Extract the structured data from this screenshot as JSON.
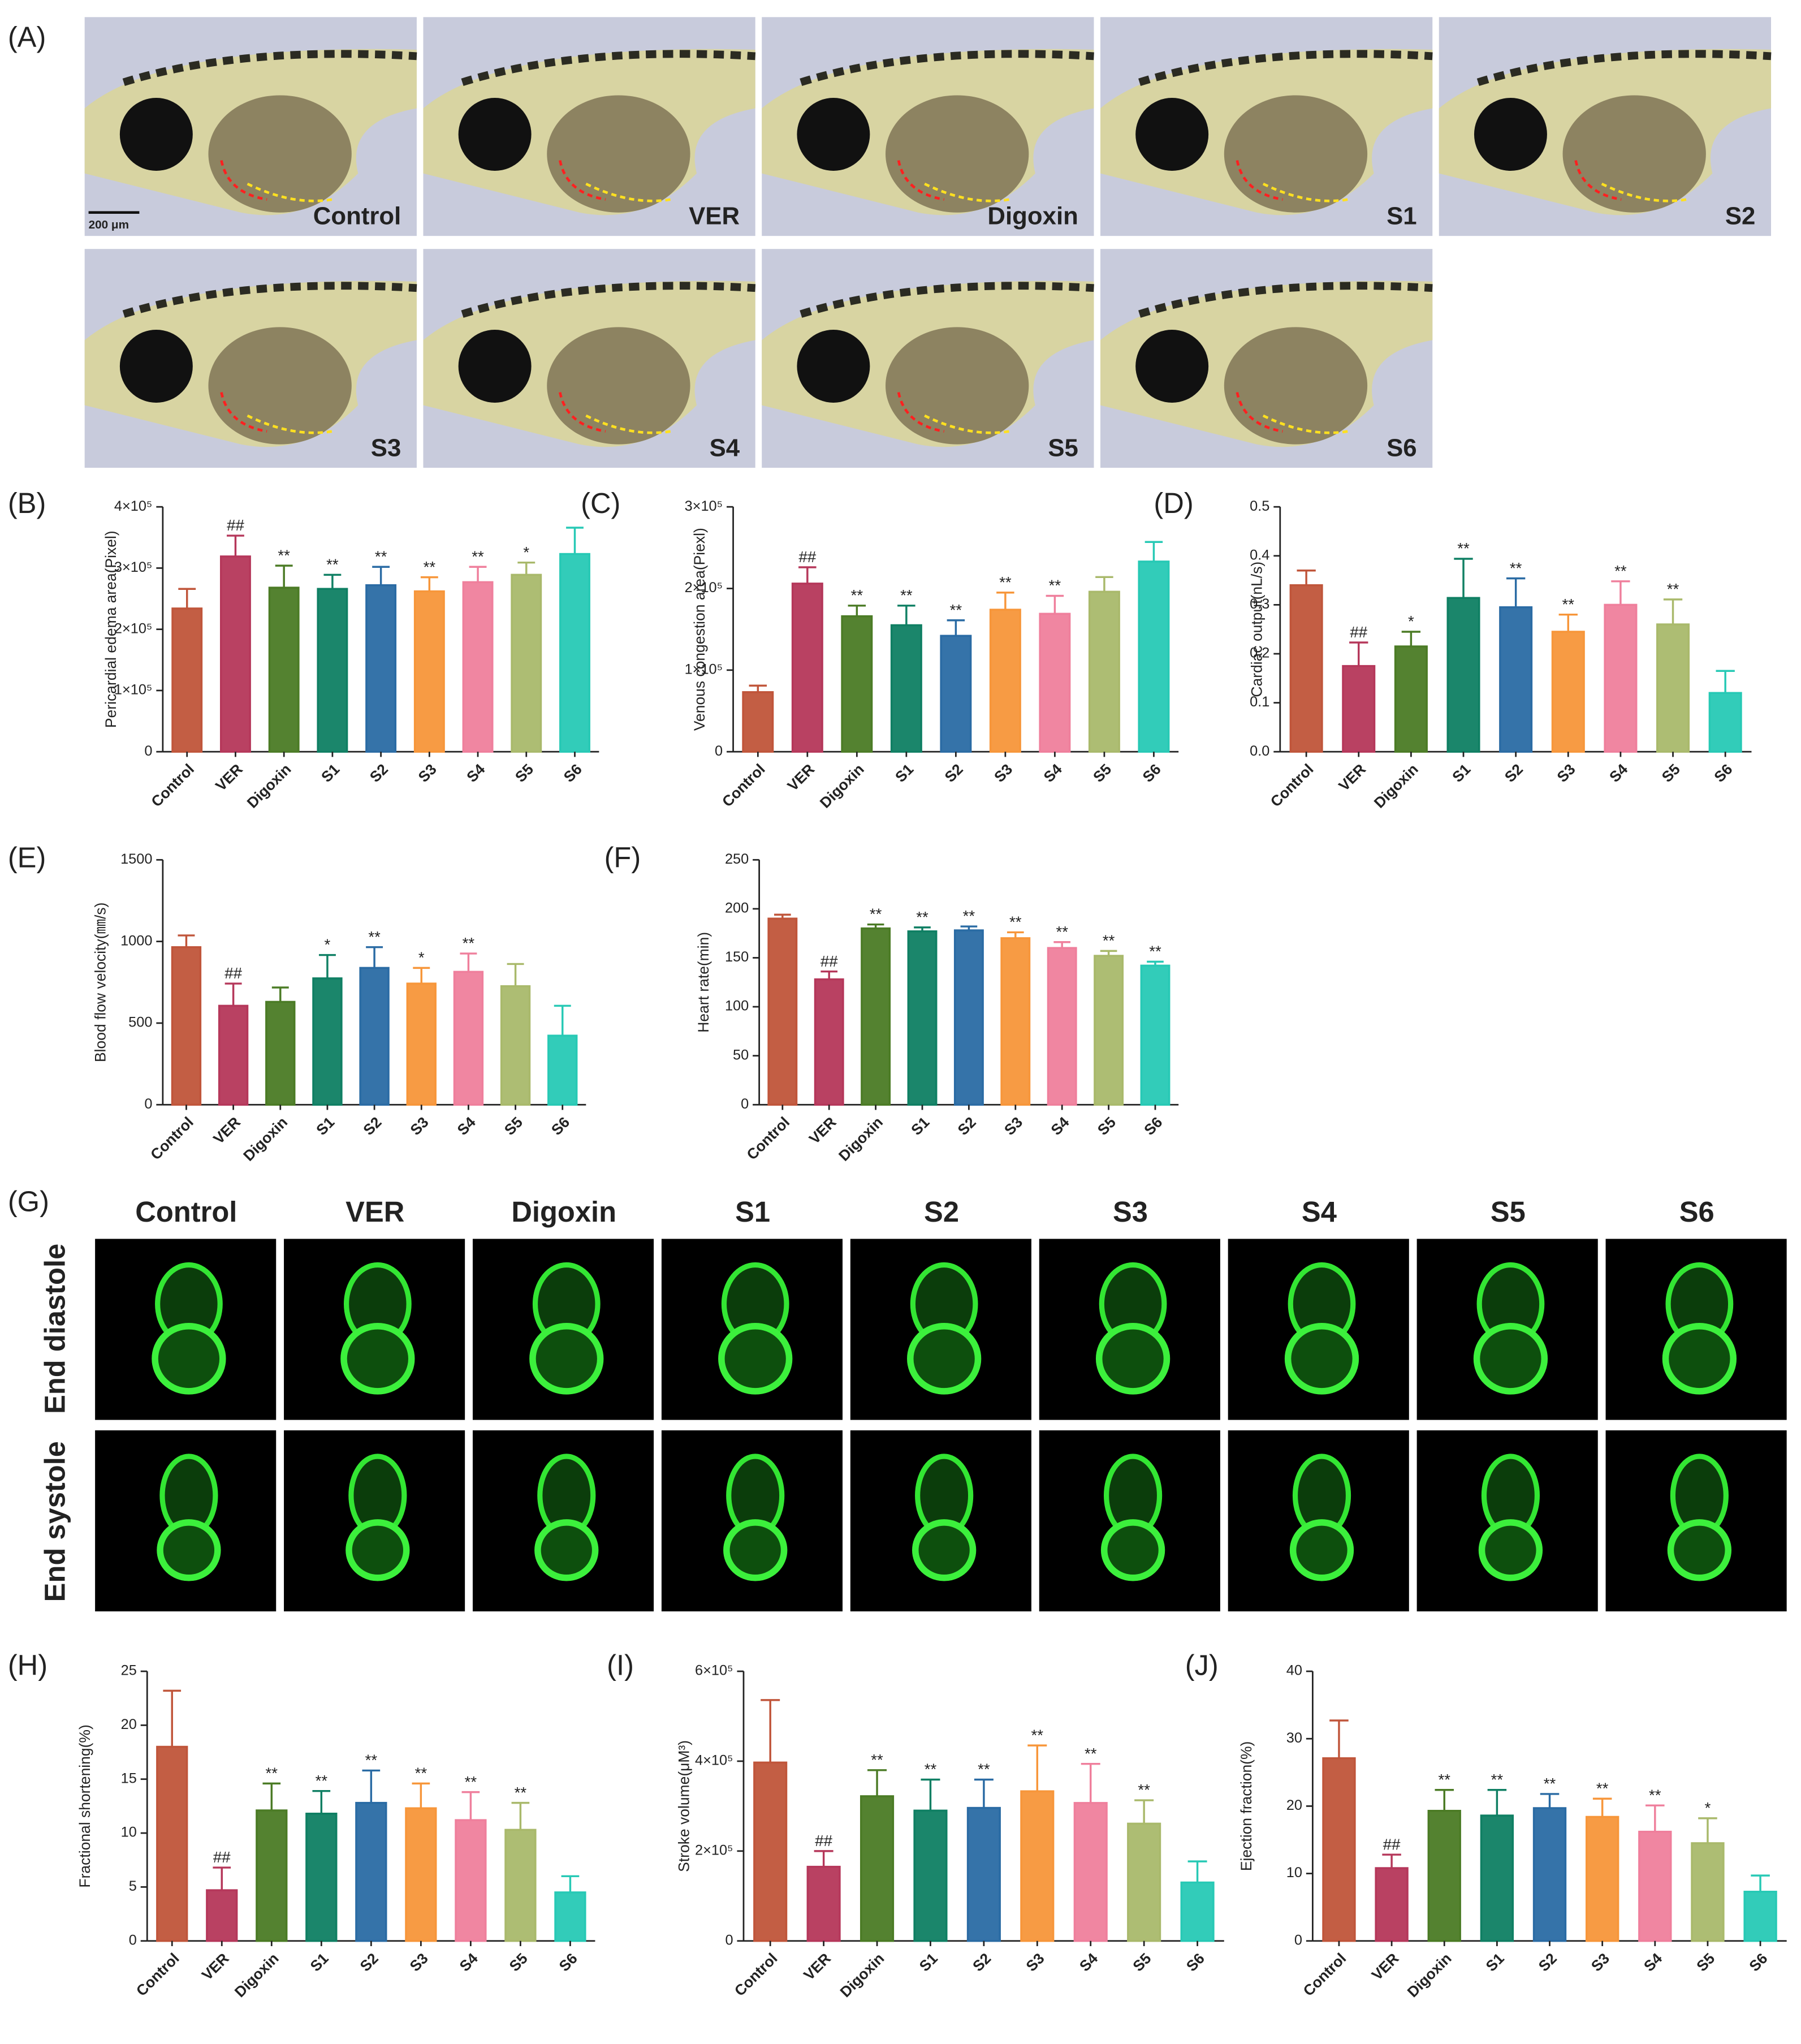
{
  "panel_a": {
    "label": "(A)",
    "scale_bar": "200 μm",
    "images": [
      "Control",
      "VER",
      "Digoxin",
      "S1",
      "S2",
      "S3",
      "S4",
      "S5",
      "S6"
    ]
  },
  "panel_g": {
    "label": "(G)",
    "columns": [
      "Control",
      "VER",
      "Digoxin",
      "S1",
      "S2",
      "S3",
      "S4",
      "S5",
      "S6"
    ],
    "rows": [
      "End diastole",
      "End systole"
    ]
  },
  "chart_data": [
    {
      "type": "bar",
      "panel_label": "(B)",
      "y_label": "Pericardial edema area(Pixel)",
      "categories": [
        "Control",
        "VER",
        "Digoxin",
        "S1",
        "S2",
        "S3",
        "S4",
        "S5",
        "S6"
      ],
      "values": [
        234000,
        319000,
        268000,
        266000,
        272000,
        262000,
        277000,
        289000,
        323000
      ],
      "errors": [
        32000,
        34000,
        36000,
        23000,
        30000,
        23000,
        25000,
        20000,
        43000
      ],
      "annotations": [
        null,
        "##",
        "**",
        "**",
        "**",
        "**",
        "**",
        "*",
        null
      ],
      "colors": [
        "#c0553a",
        "#b5375a",
        "#4b7b25",
        "#0f7f63",
        "#2a6ba4",
        "#f7963a",
        "#ef7f9c",
        "#a9b96b",
        "#27c9b5"
      ],
      "ylim": [
        0,
        400000
      ],
      "yticks": [
        0,
        {
          "value": 100000,
          "label": "1×10⁵"
        },
        {
          "value": 200000,
          "label": "2×10⁵"
        },
        {
          "value": 300000,
          "label": "3×10⁵"
        },
        {
          "value": 400000,
          "label": "4×10⁵"
        }
      ]
    },
    {
      "type": "bar",
      "panel_label": "(C)",
      "y_label": "Venous congestion area(Piexl)",
      "categories": [
        "Control",
        "VER",
        "Digoxin",
        "S1",
        "S2",
        "S3",
        "S4",
        "S5",
        "S6"
      ],
      "values": [
        73000,
        206000,
        166000,
        155000,
        142000,
        174000,
        169000,
        196000,
        233000
      ],
      "errors": [
        8000,
        20000,
        13000,
        24000,
        19000,
        21000,
        22000,
        18000,
        24000
      ],
      "annotations": [
        null,
        "##",
        "**",
        "**",
        "**",
        "**",
        "**",
        null,
        null
      ],
      "colors": [
        "#c0553a",
        "#b5375a",
        "#4b7b25",
        "#0f7f63",
        "#2a6ba4",
        "#f7963a",
        "#ef7f9c",
        "#a9b96b",
        "#27c9b5"
      ],
      "ylim": [
        0,
        300000
      ],
      "yticks": [
        0,
        {
          "value": 100000,
          "label": "1×10⁵"
        },
        {
          "value": 200000,
          "label": "2×10⁵"
        },
        {
          "value": 300000,
          "label": "3×10⁵"
        }
      ]
    },
    {
      "type": "bar",
      "panel_label": "(D)",
      "y_label": "Cardiac output(nL/s)",
      "categories": [
        "Control",
        "VER",
        "Digoxin",
        "S1",
        "S2",
        "S3",
        "S4",
        "S5",
        "S6"
      ],
      "values": [
        0.34,
        0.175,
        0.215,
        0.314,
        0.295,
        0.245,
        0.3,
        0.26,
        0.12
      ],
      "errors": [
        0.03,
        0.048,
        0.03,
        0.08,
        0.059,
        0.035,
        0.048,
        0.051,
        0.045
      ],
      "annotations": [
        null,
        "##",
        "*",
        "**",
        "**",
        "**",
        "**",
        "**",
        null
      ],
      "colors": [
        "#c0553a",
        "#b5375a",
        "#4b7b25",
        "#0f7f63",
        "#2a6ba4",
        "#f7963a",
        "#ef7f9c",
        "#a9b96b",
        "#27c9b5"
      ],
      "ylim": [
        0,
        0.5
      ],
      "yticks": [
        {
          "value": 0,
          "label": "0.0"
        },
        0.1,
        0.2,
        0.3,
        0.4,
        0.5
      ]
    },
    {
      "type": "bar",
      "panel_label": "(E)",
      "y_label": "Blood flow velocity(㎜/s)",
      "categories": [
        "Control",
        "VER",
        "Digoxin",
        "S1",
        "S2",
        "S3",
        "S4",
        "S5",
        "S6"
      ],
      "values": [
        965,
        606,
        630,
        774,
        838,
        742,
        814,
        726,
        423
      ],
      "errors": [
        72,
        136,
        88,
        143,
        127,
        96,
        112,
        136,
        183
      ],
      "annotations": [
        null,
        "##",
        null,
        "*",
        "**",
        "*",
        "**",
        null,
        null
      ],
      "colors": [
        "#c0553a",
        "#b5375a",
        "#4b7b25",
        "#0f7f63",
        "#2a6ba4",
        "#f7963a",
        "#ef7f9c",
        "#a9b96b",
        "#27c9b5"
      ],
      "ylim": [
        0,
        1500
      ],
      "yticks": [
        0,
        500,
        1000,
        1500
      ]
    },
    {
      "type": "bar",
      "panel_label": "(F)",
      "y_label": "Heart rate(min)",
      "categories": [
        "Control",
        "VER",
        "Digoxin",
        "S1",
        "S2",
        "S3",
        "S4",
        "S5",
        "S6"
      ],
      "values": [
        190,
        128,
        180,
        177,
        178,
        170,
        160,
        152,
        142
      ],
      "errors": [
        4,
        8,
        4,
        4,
        4,
        6,
        6,
        5,
        4
      ],
      "annotations": [
        null,
        "##",
        "**",
        "**",
        "**",
        "**",
        "**",
        "**",
        "**"
      ],
      "colors": [
        "#c0553a",
        "#b5375a",
        "#4b7b25",
        "#0f7f63",
        "#2a6ba4",
        "#f7963a",
        "#ef7f9c",
        "#a9b96b",
        "#27c9b5"
      ],
      "ylim": [
        0,
        250
      ],
      "yticks": [
        0,
        50,
        100,
        150,
        200,
        250
      ]
    },
    {
      "type": "bar",
      "panel_label": "(H)",
      "y_label": "Fractional shortening(%)",
      "categories": [
        "Control",
        "VER",
        "Digoxin",
        "S1",
        "S2",
        "S3",
        "S4",
        "S5",
        "S6"
      ],
      "values": [
        18.0,
        4.7,
        12.1,
        11.8,
        12.8,
        12.3,
        11.2,
        10.3,
        4.5
      ],
      "errors": [
        5.2,
        2.1,
        2.5,
        2.1,
        3.0,
        2.3,
        2.6,
        2.5,
        1.5
      ],
      "annotations": [
        null,
        "##",
        "**",
        "**",
        "**",
        "**",
        "**",
        "**",
        null
      ],
      "colors": [
        "#c0553a",
        "#b5375a",
        "#4b7b25",
        "#0f7f63",
        "#2a6ba4",
        "#f7963a",
        "#ef7f9c",
        "#a9b96b",
        "#27c9b5"
      ],
      "ylim": [
        0,
        25
      ],
      "yticks": [
        0,
        5,
        10,
        15,
        20,
        25
      ]
    },
    {
      "type": "bar",
      "panel_label": "(I)",
      "y_label": "Stroke volume(μM³)",
      "categories": [
        "Control",
        "VER",
        "Digoxin",
        "S1",
        "S2",
        "S3",
        "S4",
        "S5",
        "S6"
      ],
      "values": [
        397000,
        165000,
        322000,
        290000,
        296000,
        333000,
        307000,
        261000,
        130000
      ],
      "errors": [
        139000,
        35000,
        58000,
        69000,
        63000,
        102000,
        87000,
        52000,
        47000
      ],
      "annotations": [
        null,
        "##",
        "**",
        "**",
        "**",
        "**",
        "**",
        "**",
        null
      ],
      "colors": [
        "#c0553a",
        "#b5375a",
        "#4b7b25",
        "#0f7f63",
        "#2a6ba4",
        "#f7963a",
        "#ef7f9c",
        "#a9b96b",
        "#27c9b5"
      ],
      "ylim": [
        0,
        600000
      ],
      "yticks": [
        0,
        {
          "value": 200000,
          "label": "2×10⁵"
        },
        {
          "value": 400000,
          "label": "4×10⁵"
        },
        {
          "value": 600000,
          "label": "6×10⁵"
        }
      ]
    },
    {
      "type": "bar",
      "panel_label": "(J)",
      "y_label": "Ejection fraction(%)",
      "categories": [
        "Control",
        "VER",
        "Digoxin",
        "S1",
        "S2",
        "S3",
        "S4",
        "S5",
        "S6"
      ],
      "values": [
        27.1,
        10.8,
        19.3,
        18.6,
        19.7,
        18.4,
        16.2,
        14.5,
        7.3
      ],
      "errors": [
        5.6,
        2.0,
        3.1,
        3.8,
        2.1,
        2.7,
        3.9,
        3.7,
        2.4
      ],
      "annotations": [
        null,
        "##",
        "**",
        "**",
        "**",
        "**",
        "**",
        "*",
        null
      ],
      "colors": [
        "#c0553a",
        "#b5375a",
        "#4b7b25",
        "#0f7f63",
        "#2a6ba4",
        "#f7963a",
        "#ef7f9c",
        "#a9b96b",
        "#27c9b5"
      ],
      "ylim": [
        0,
        40
      ],
      "yticks": [
        0,
        10,
        20,
        30,
        40
      ]
    }
  ]
}
